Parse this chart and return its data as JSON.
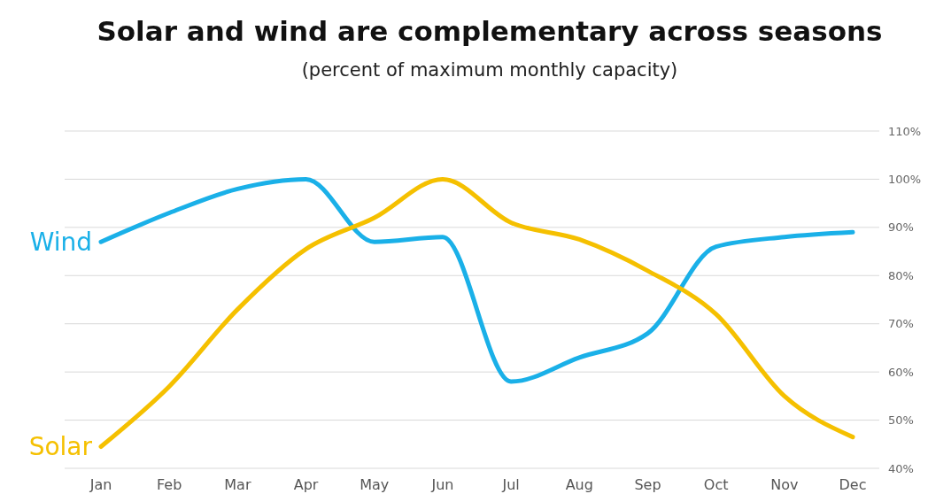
{
  "chart_data": {
    "type": "line",
    "title": "Solar and wind are complementary across seasons",
    "subtitle": "(percent of maximum monthly capacity)",
    "categories": [
      "Jan",
      "Feb",
      "Mar",
      "Apr",
      "May",
      "Jun",
      "Jul",
      "Aug",
      "Sep",
      "Oct",
      "Nov",
      "Dec"
    ],
    "series": [
      {
        "name": "Wind",
        "color": "#1ab0e8",
        "values": [
          87,
          93,
          98,
          100,
          87,
          88,
          58,
          63,
          68,
          86,
          88,
          89
        ]
      },
      {
        "name": "Solar",
        "color": "#f5c000",
        "values": [
          44.5,
          57,
          73,
          85.5,
          92,
          100,
          91,
          87.5,
          81,
          72,
          55,
          46.5
        ]
      }
    ],
    "ylim": [
      40,
      110
    ],
    "yticks": [
      {
        "value": 40,
        "label": "40%"
      },
      {
        "value": 50,
        "label": "50%"
      },
      {
        "value": 60,
        "label": "60%"
      },
      {
        "value": 70,
        "label": "70%"
      },
      {
        "value": 80,
        "label": "80%"
      },
      {
        "value": 90,
        "label": "90%"
      },
      {
        "value": 100,
        "label": "100%"
      },
      {
        "value": 110,
        "label": "110%"
      }
    ],
    "grid": "y",
    "marker": "none",
    "line_style": "solid"
  }
}
